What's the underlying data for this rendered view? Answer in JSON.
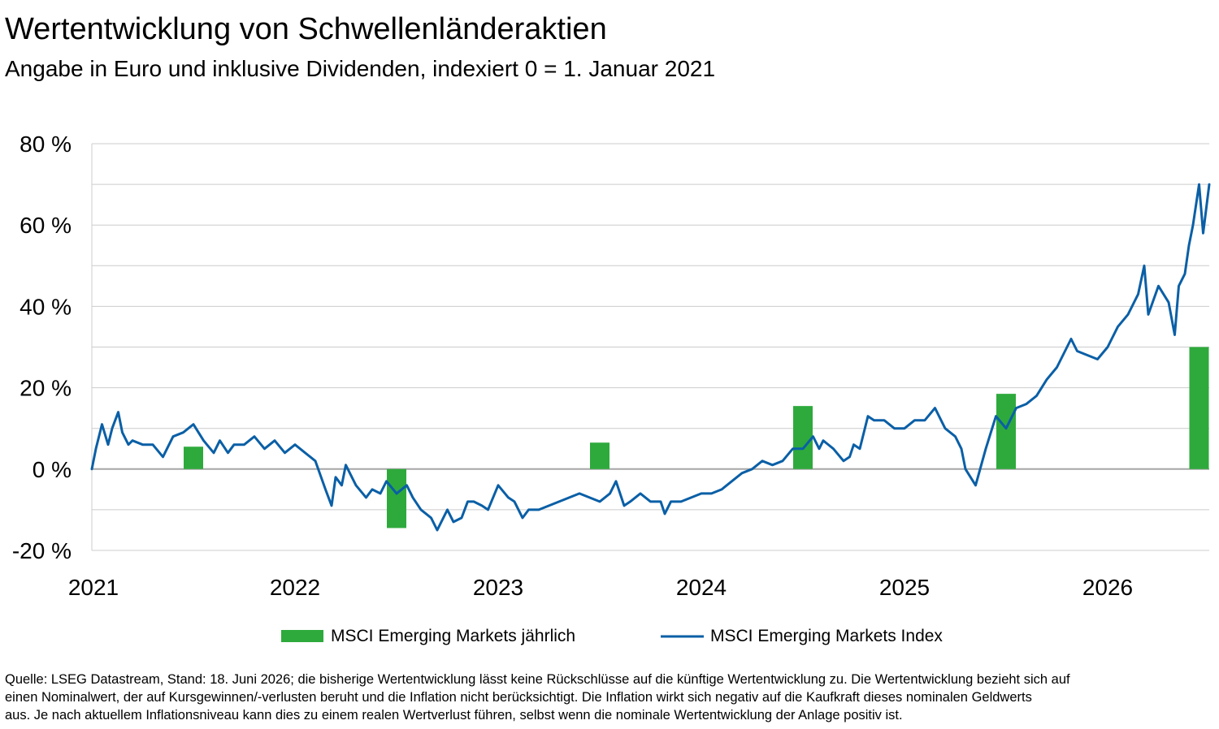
{
  "title": "Wertentwicklung von Schwellenländeraktien",
  "subtitle": "Angabe in Euro und inklusive Dividenden, indexiert 0 = 1. Januar 2021",
  "source_lines": [
    "Quelle: LSEG Datastream, Stand: 18. Juni 2026; die bisherige Wertentwicklung lässt keine Rückschlüsse auf die künftige Wertentwicklung zu. Die Wertentwicklung bezieht sich auf",
    "einen Nominalwert, der auf Kursgewinnen/-verlusten beruht und die Inflation nicht berücksichtigt. Die Inflation wirkt sich negativ auf die Kaufkraft dieses nominalen Geldwerts",
    "aus. Je nach aktuellem Inflationsniveau kann dies zu einem realen Wertverlust führen, selbst wenn die nominale Wertentwicklung der Anlage positiv ist."
  ],
  "colors": {
    "bar": "#2eaa3c",
    "line": "#0a5fa6",
    "grid": "#cccccc",
    "zero": "#a6a6a6"
  },
  "chart_data": {
    "type": "bar+line",
    "xlim": [
      2021.0,
      2026.5
    ],
    "ylim": [
      -20,
      80
    ],
    "y_ticks": [
      -20,
      0,
      20,
      40,
      60,
      80
    ],
    "y_tick_labels": [
      "-20 %",
      "0 %",
      "20 %",
      "40 %",
      "60 %",
      "80 %"
    ],
    "x_ticks": [
      2021,
      2022,
      2023,
      2024,
      2025,
      2026
    ],
    "x_tick_labels": [
      "2021",
      "2022",
      "2023",
      "2024",
      "2025",
      "2026"
    ],
    "grid": true,
    "legend_position": "bottom",
    "legend": [
      "MSCI Emerging Markets jährlich",
      "MSCI Emerging Markets Index"
    ],
    "bars": {
      "name": "MSCI Emerging Markets jährlich",
      "x": [
        2021.5,
        2022.5,
        2023.5,
        2024.5,
        2025.5,
        2026.45
      ],
      "values": [
        5.5,
        -14.5,
        6.5,
        15.5,
        18.5,
        30.0
      ]
    },
    "line": {
      "name": "MSCI Emerging Markets Index",
      "x": [
        2021.0,
        2021.02,
        2021.05,
        2021.08,
        2021.1,
        2021.13,
        2021.15,
        2021.18,
        2021.2,
        2021.25,
        2021.3,
        2021.35,
        2021.4,
        2021.45,
        2021.5,
        2021.55,
        2021.6,
        2021.63,
        2021.67,
        2021.7,
        2021.75,
        2021.8,
        2021.85,
        2021.9,
        2021.95,
        2022.0,
        2022.05,
        2022.1,
        2022.15,
        2022.18,
        2022.2,
        2022.23,
        2022.25,
        2022.3,
        2022.35,
        2022.38,
        2022.42,
        2022.45,
        2022.5,
        2022.55,
        2022.58,
        2022.62,
        2022.67,
        2022.7,
        2022.75,
        2022.78,
        2022.82,
        2022.85,
        2022.88,
        2022.92,
        2022.95,
        2023.0,
        2023.05,
        2023.08,
        2023.12,
        2023.15,
        2023.2,
        2023.25,
        2023.3,
        2023.35,
        2023.4,
        2023.45,
        2023.5,
        2023.55,
        2023.58,
        2023.62,
        2023.65,
        2023.7,
        2023.75,
        2023.8,
        2023.82,
        2023.85,
        2023.9,
        2023.95,
        2024.0,
        2024.05,
        2024.1,
        2024.15,
        2024.2,
        2024.25,
        2024.3,
        2024.35,
        2024.4,
        2024.45,
        2024.5,
        2024.55,
        2024.58,
        2024.6,
        2024.65,
        2024.7,
        2024.73,
        2024.75,
        2024.78,
        2024.82,
        2024.85,
        2024.9,
        2024.95,
        2025.0,
        2025.05,
        2025.1,
        2025.15,
        2025.2,
        2025.25,
        2025.28,
        2025.3,
        2025.35,
        2025.4,
        2025.45,
        2025.5,
        2025.55,
        2025.6,
        2025.65,
        2025.7,
        2025.75,
        2025.8,
        2025.82,
        2025.85,
        2025.9,
        2025.95,
        2026.0,
        2026.05,
        2026.1,
        2026.12,
        2026.15,
        2026.18,
        2026.2,
        2026.25,
        2026.3,
        2026.33,
        2026.35,
        2026.38,
        2026.4,
        2026.42,
        2026.45,
        2026.47,
        2026.48,
        2026.5
      ],
      "values": [
        0,
        5,
        11,
        6,
        10,
        14,
        9,
        6,
        7,
        6,
        6,
        3,
        8,
        9,
        11,
        7,
        4,
        7,
        4,
        6,
        6,
        8,
        5,
        7,
        4,
        6,
        4,
        2,
        -5,
        -9,
        -2,
        -4,
        1,
        -4,
        -7,
        -5,
        -6,
        -3,
        -6,
        -4,
        -7,
        -10,
        -12,
        -15,
        -10,
        -13,
        -12,
        -8,
        -8,
        -9,
        -10,
        -4,
        -7,
        -8,
        -12,
        -10,
        -10,
        -9,
        -8,
        -7,
        -6,
        -7,
        -8,
        -6,
        -3,
        -9,
        -8,
        -6,
        -8,
        -8,
        -11,
        -8,
        -8,
        -7,
        -6,
        -6,
        -5,
        -3,
        -1,
        0,
        2,
        1,
        2,
        5,
        5,
        8,
        5,
        7,
        5,
        2,
        3,
        6,
        5,
        13,
        12,
        12,
        10,
        10,
        12,
        12,
        15,
        10,
        8,
        5,
        0,
        -4,
        5,
        13,
        10,
        15,
        16,
        18,
        22,
        25,
        30,
        32,
        29,
        28,
        27,
        30,
        35,
        38,
        40,
        43,
        50,
        38,
        45,
        41,
        33,
        45,
        48,
        55,
        60,
        70,
        58,
        62,
        70
      ]
    }
  }
}
